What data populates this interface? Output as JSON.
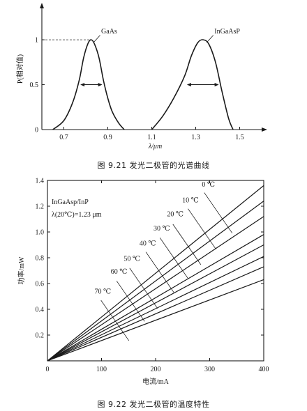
{
  "chart_data": [
    {
      "type": "line",
      "caption": "图 9.21   发光二极管的光谱曲线",
      "xlabel": "λ/μm",
      "ylabel": "P(相对值)",
      "xlim": [
        0.6,
        1.6
      ],
      "ylim": [
        0,
        1.35
      ],
      "xticks": [
        0.7,
        0.9,
        1.1,
        1.3,
        1.5
      ],
      "xtick_labels": [
        "0.7",
        "0.9",
        "1.1",
        "1.3",
        "1.5"
      ],
      "yticks": [
        0,
        0.5,
        1
      ],
      "ytick_labels": [
        "0",
        "0.5",
        "1"
      ],
      "series": [
        {
          "name": "GaAs",
          "x": [
            0.65,
            0.7,
            0.74,
            0.77,
            0.79,
            0.81,
            0.825,
            0.84,
            0.86,
            0.88,
            0.9,
            0.92,
            0.95,
            0.975
          ],
          "y": [
            0.0,
            0.1,
            0.3,
            0.55,
            0.8,
            0.96,
            1.0,
            0.95,
            0.8,
            0.55,
            0.35,
            0.2,
            0.07,
            0.0
          ]
        },
        {
          "name": "InGaAsP",
          "x": [
            1.1,
            1.15,
            1.2,
            1.25,
            1.28,
            1.31,
            1.335,
            1.36,
            1.39,
            1.42,
            1.45,
            1.47
          ],
          "y": [
            0.0,
            0.15,
            0.35,
            0.6,
            0.82,
            0.97,
            1.0,
            0.95,
            0.75,
            0.42,
            0.12,
            0.0
          ]
        }
      ],
      "fwhm": [
        {
          "series": "GaAs",
          "x1": 0.775,
          "x2": 0.875,
          "y": 0.5
        },
        {
          "series": "InGaAsP",
          "x1": 1.26,
          "x2": 1.405,
          "y": 0.5
        }
      ],
      "dashed_line": {
        "y": 1,
        "x_to": 0.82
      }
    },
    {
      "type": "line",
      "caption": "图 9.22   发光二极管的温度特性",
      "xlabel": "电流/mA",
      "ylabel": "功率/mW",
      "xlim": [
        0,
        400
      ],
      "ylim": [
        0,
        1.4
      ],
      "xticks": [
        0,
        100,
        200,
        300,
        400
      ],
      "xtick_labels": [
        "0",
        "100",
        "200",
        "300",
        "400"
      ],
      "yticks": [
        0.2,
        0.4,
        0.6,
        0.8,
        1.0,
        1.2,
        1.4
      ],
      "ytick_labels": [
        "0.2",
        "0.4",
        "0.6",
        "0.8",
        "1.0",
        "1.2",
        "1.4"
      ],
      "annotation_lines": [
        "InGaAsp/InP",
        "λ(20℃)=1.23 μm"
      ],
      "series": [
        {
          "name": "0 ℃",
          "x": [
            0,
            400
          ],
          "y": [
            0,
            1.36
          ],
          "label_at": [
            320,
            1.34
          ],
          "leader_from": [
            290,
            1.305
          ]
        },
        {
          "name": "10 ℃",
          "x": [
            0,
            400
          ],
          "y": [
            0,
            1.24
          ],
          "label_at": [
            290,
            1.22
          ],
          "leader_from": [
            260,
            1.18
          ]
        },
        {
          "name": "20 ℃",
          "x": [
            0,
            400
          ],
          "y": [
            0,
            1.12
          ],
          "label_at": [
            262,
            1.11
          ],
          "leader_from": [
            232,
            1.06
          ]
        },
        {
          "name": "30 ℃",
          "x": [
            0,
            400
          ],
          "y": [
            0,
            0.98
          ],
          "label_at": [
            237,
            1.0
          ],
          "leader_from": [
            208,
            0.955
          ]
        },
        {
          "name": "40 ℃",
          "x": [
            0,
            400
          ],
          "y": [
            0,
            0.9
          ],
          "label_at": [
            211,
            0.885
          ],
          "leader_from": [
            182,
            0.845
          ]
        },
        {
          "name": "50 ℃",
          "x": [
            0,
            400
          ],
          "y": [
            0,
            0.81
          ],
          "label_at": [
            182,
            0.765
          ],
          "leader_from": [
            152,
            0.72
          ]
        },
        {
          "name": "60 ℃",
          "x": [
            0,
            400
          ],
          "y": [
            0,
            0.73
          ],
          "label_at": [
            158,
            0.665
          ],
          "leader_from": [
            128,
            0.62
          ]
        },
        {
          "name": "70 ℃",
          "x": [
            0,
            400
          ],
          "y": [
            0,
            0.63
          ],
          "label_at": [
            128,
            0.51
          ],
          "leader_from": [
            99,
            0.47
          ]
        }
      ]
    }
  ]
}
